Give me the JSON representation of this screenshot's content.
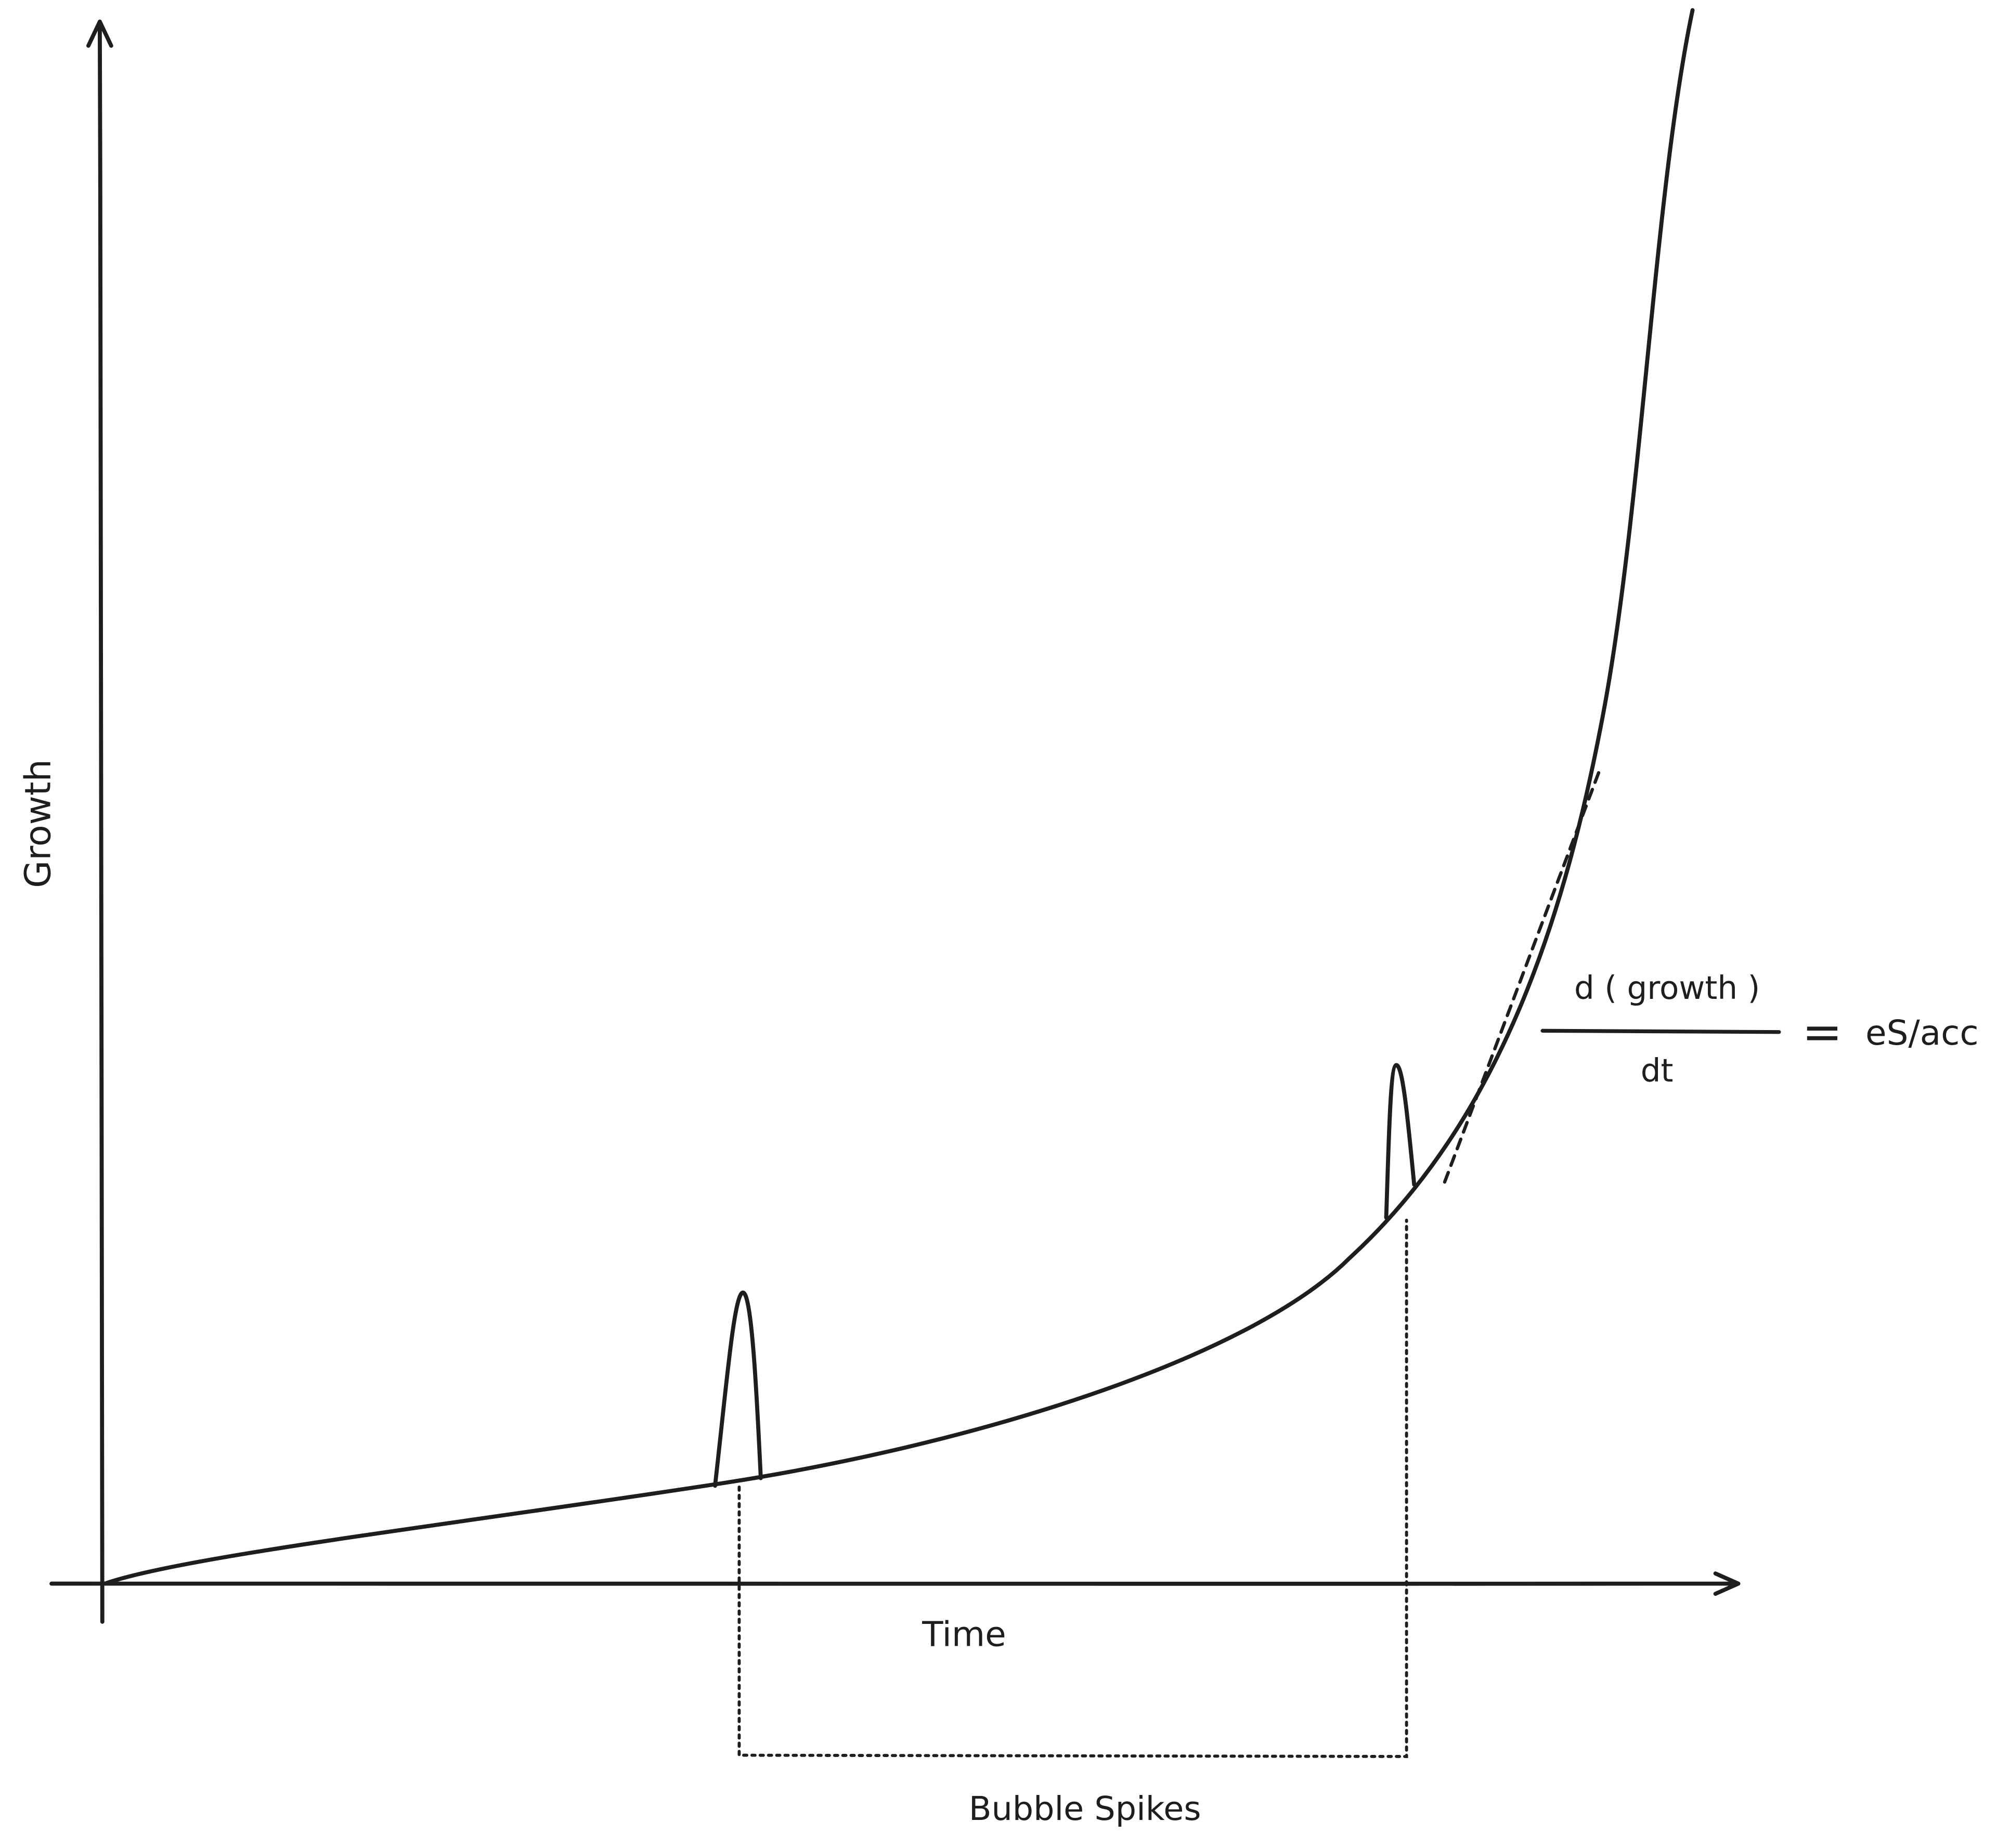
{
  "axes": {
    "y_label": "Growth",
    "x_label": "Time"
  },
  "annotations": {
    "fraction_numerator": "d ( growth )",
    "fraction_denominator": "dt",
    "equals_sign": "=",
    "result": "eS/acc",
    "bracket_label": "Bubble Spikes"
  },
  "colors": {
    "stroke": "#1e1e1e",
    "background": "#ffffff"
  }
}
